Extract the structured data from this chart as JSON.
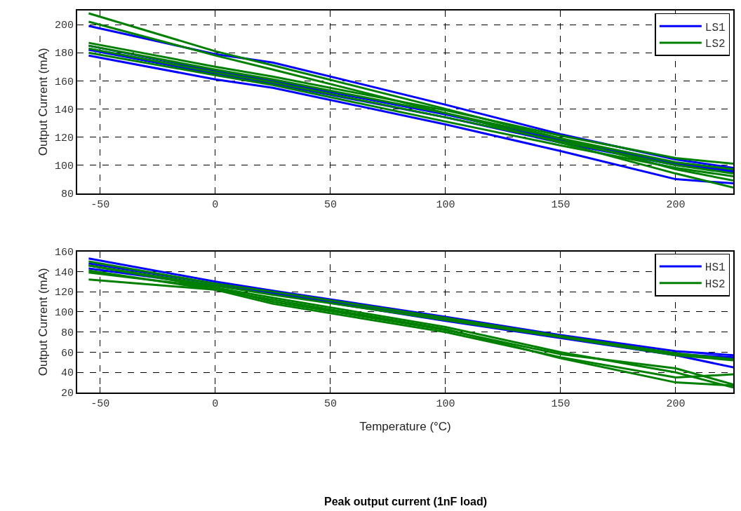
{
  "chart_data": [
    {
      "type": "line",
      "ylabel": "Output Current (mA)",
      "x": [
        -55,
        0,
        25,
        100,
        150,
        200,
        225
      ],
      "xlim": [
        -60,
        225
      ],
      "xticks": [
        -50,
        0,
        50,
        100,
        150,
        200
      ],
      "ylim": [
        80,
        210
      ],
      "yticks": [
        80,
        100,
        120,
        140,
        160,
        180,
        200
      ],
      "grid": true,
      "legend": "top right",
      "line_style": "solid",
      "series": [
        {
          "name": "LS1",
          "color": "#0000ff",
          "values": [
            199,
            179,
            173,
            143,
            122,
            104,
            98
          ]
        },
        {
          "color": "#0000ff",
          "values": [
            185,
            167,
            160,
            136,
            118,
            101,
            96
          ]
        },
        {
          "color": "#0000ff",
          "values": [
            182,
            165,
            158,
            134,
            116,
            100,
            95
          ]
        },
        {
          "color": "#0000ff",
          "values": [
            178,
            161,
            155,
            129,
            110,
            90,
            87
          ]
        },
        {
          "name": "LS2",
          "color": "#008000",
          "values": [
            208,
            181,
            171,
            140,
            119,
            97,
            89
          ]
        },
        {
          "color": "#008000",
          "values": [
            202,
            178,
            168,
            137,
            116,
            94,
            84
          ]
        },
        {
          "color": "#008000",
          "values": [
            187,
            170,
            163,
            139,
            121,
            105,
            101
          ]
        },
        {
          "color": "#008000",
          "values": [
            185,
            168,
            161,
            137,
            119,
            102,
            97
          ]
        },
        {
          "color": "#008000",
          "values": [
            183,
            166,
            159,
            134,
            117,
            100,
            94
          ]
        },
        {
          "color": "#008000",
          "values": [
            180,
            164,
            157,
            131,
            114,
            98,
            92
          ]
        }
      ]
    },
    {
      "type": "line",
      "ylabel": "Output Current (mA)",
      "xlabel": "Temperature (°C)",
      "x": [
        -55,
        0,
        25,
        100,
        150,
        200,
        225
      ],
      "xlim": [
        -60,
        225
      ],
      "xticks": [
        -50,
        0,
        50,
        100,
        150,
        200
      ],
      "ylim": [
        20,
        160
      ],
      "yticks": [
        20,
        40,
        60,
        80,
        100,
        120,
        140,
        160
      ],
      "grid": true,
      "legend": "top right",
      "line_style": "solid",
      "annotations": [
        "Peak output current (1nF load)"
      ],
      "series": [
        {
          "name": "HS1",
          "color": "#0000ff",
          "values": [
            153,
            130,
            121,
            95,
            77,
            61,
            57
          ]
        },
        {
          "color": "#0000ff",
          "values": [
            148,
            128,
            119,
            93,
            75,
            58,
            55
          ]
        },
        {
          "color": "#0000ff",
          "values": [
            143,
            126,
            118,
            91,
            74,
            57,
            45
          ]
        },
        {
          "name": "HS2",
          "color": "#008000",
          "values": [
            150,
            128,
            120,
            94,
            76,
            59,
            53
          ]
        },
        {
          "color": "#008000",
          "values": [
            146,
            126,
            117,
            92,
            75,
            57,
            52
          ]
        },
        {
          "color": "#008000",
          "values": [
            139,
            124,
            110,
            82,
            58,
            44,
            28
          ]
        },
        {
          "color": "#008000",
          "values": [
            132,
            122,
            108,
            80,
            55,
            35,
            38
          ]
        },
        {
          "color": "#008000",
          "values": [
            146,
            124,
            114,
            85,
            60,
            40,
            25
          ]
        },
        {
          "color": "#008000",
          "values": [
            141,
            122,
            112,
            83,
            54,
            30,
            27
          ]
        }
      ]
    }
  ]
}
